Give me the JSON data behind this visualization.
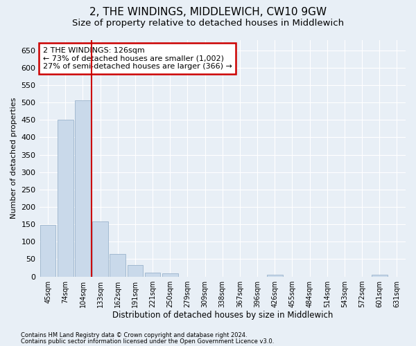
{
  "title": "2, THE WINDINGS, MIDDLEWICH, CW10 9GW",
  "subtitle": "Size of property relative to detached houses in Middlewich",
  "xlabel": "Distribution of detached houses by size in Middlewich",
  "ylabel": "Number of detached properties",
  "footnote1": "Contains HM Land Registry data © Crown copyright and database right 2024.",
  "footnote2": "Contains public sector information licensed under the Open Government Licence v3.0.",
  "annotation_line1": "2 THE WINDINGS: 126sqm",
  "annotation_line2": "← 73% of detached houses are smaller (1,002)",
  "annotation_line3": "27% of semi-detached houses are larger (366) →",
  "bar_color": "#c9d9ea",
  "bar_edge_color": "#9ab4cc",
  "vline_color": "#cc0000",
  "vline_x_index": 3,
  "categories": [
    "45sqm",
    "74sqm",
    "104sqm",
    "133sqm",
    "162sqm",
    "191sqm",
    "221sqm",
    "250sqm",
    "279sqm",
    "309sqm",
    "338sqm",
    "367sqm",
    "396sqm",
    "426sqm",
    "455sqm",
    "484sqm",
    "514sqm",
    "543sqm",
    "572sqm",
    "601sqm",
    "631sqm"
  ],
  "values": [
    148,
    450,
    507,
    158,
    65,
    33,
    12,
    9,
    0,
    0,
    0,
    0,
    0,
    5,
    0,
    0,
    0,
    0,
    0,
    5,
    0
  ],
  "ylim": [
    0,
    680
  ],
  "yticks": [
    0,
    50,
    100,
    150,
    200,
    250,
    300,
    350,
    400,
    450,
    500,
    550,
    600,
    650
  ],
  "background_color": "#e8eff6",
  "grid_color": "#ffffff",
  "title_fontsize": 11,
  "subtitle_fontsize": 9.5,
  "ylabel_fontsize": 8,
  "xlabel_fontsize": 8.5,
  "annotation_box_color": "#ffffff",
  "annotation_box_edgecolor": "#cc0000",
  "annotation_fontsize": 8
}
